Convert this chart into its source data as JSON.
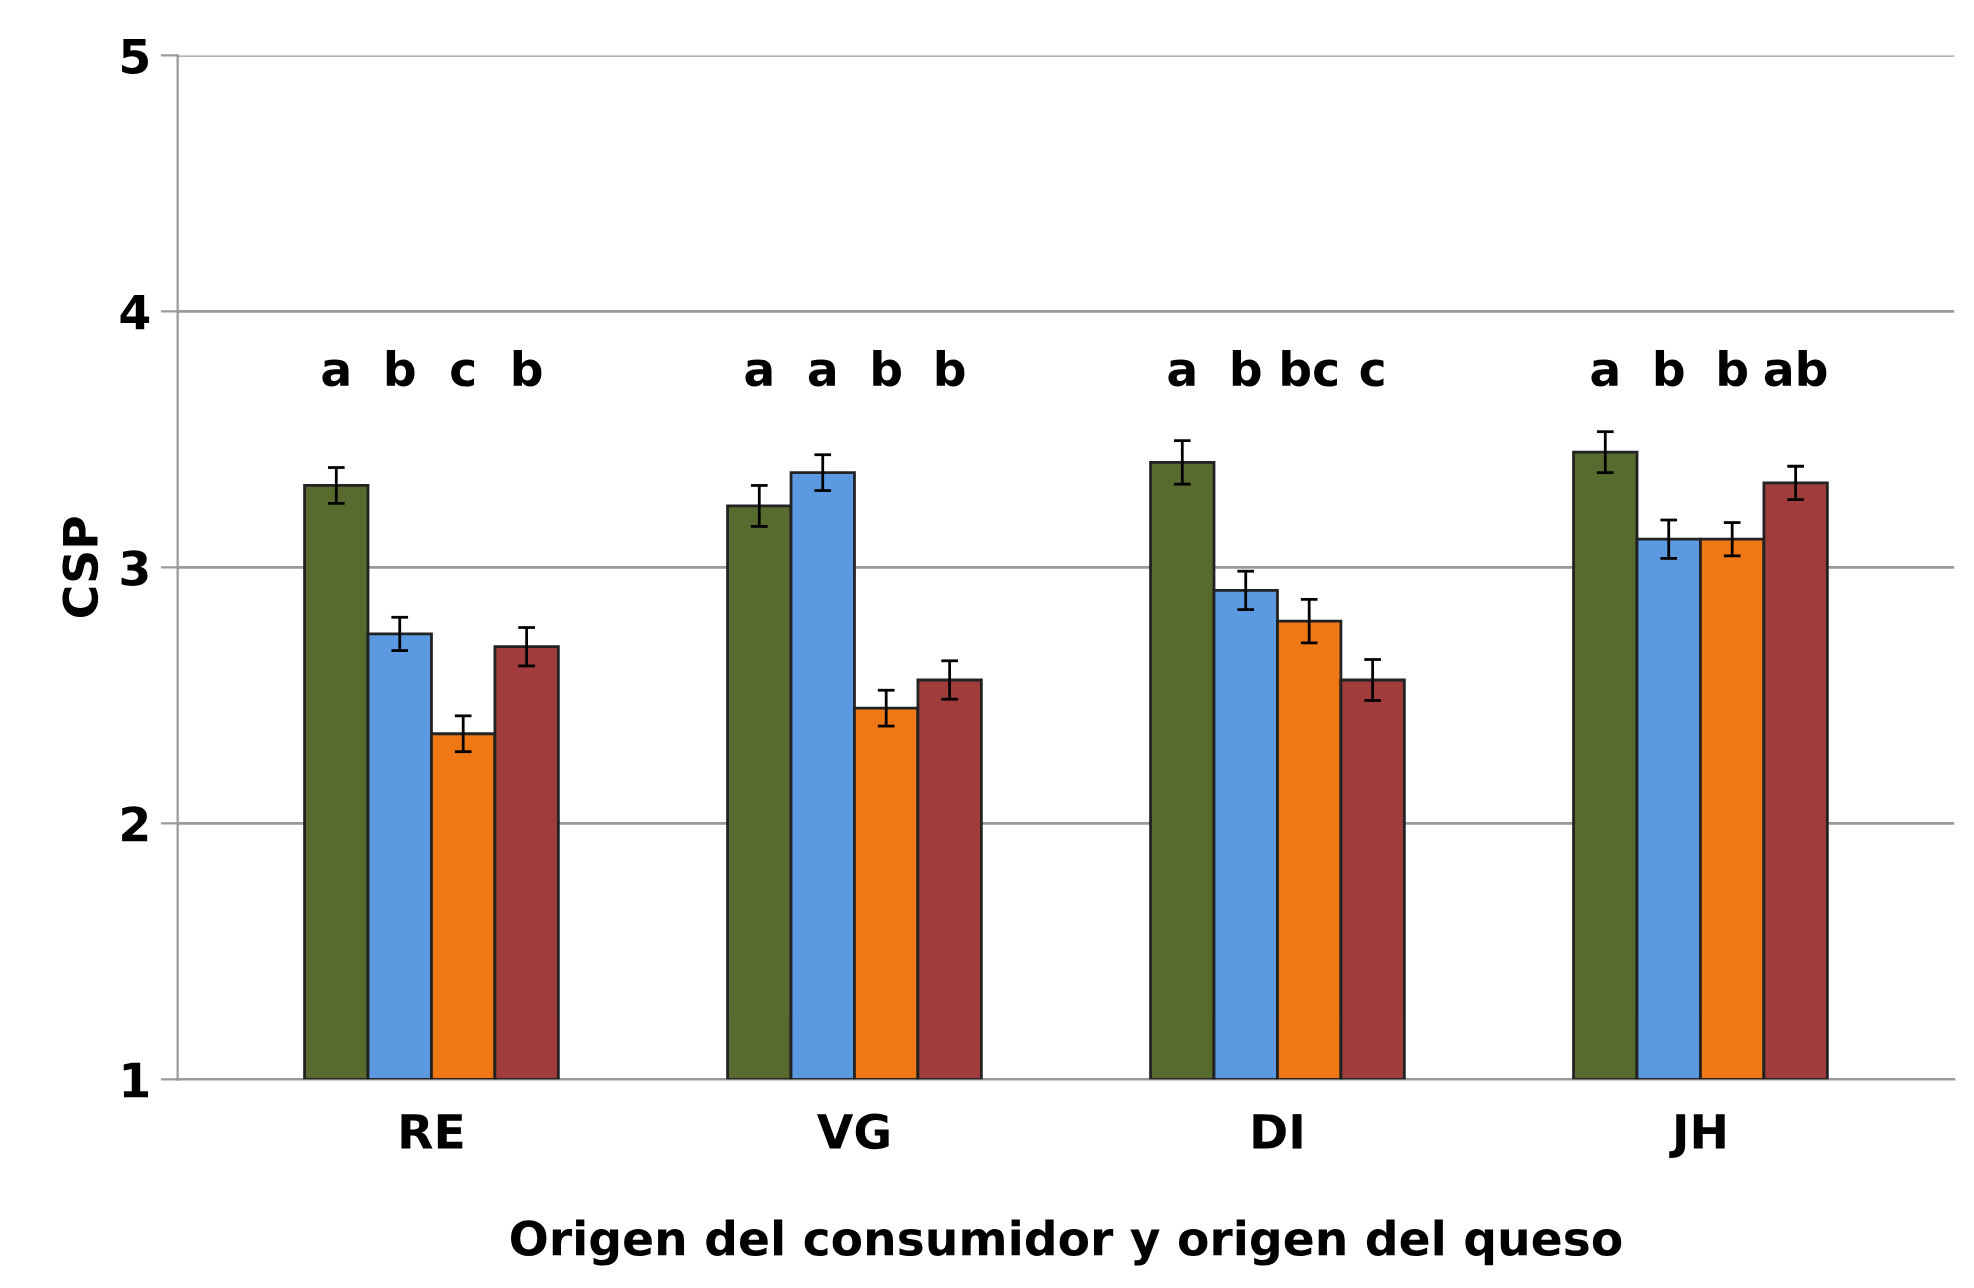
{
  "chart_data": {
    "type": "bar",
    "xlabel": "Origen del consumidor y origen del queso",
    "ylabel": "CSP",
    "categories": [
      "RE",
      "VG",
      "DI",
      "JH"
    ],
    "annotations": [
      "a",
      "b",
      "c",
      "b",
      "a",
      "a",
      "b",
      "b",
      "a",
      "b",
      "bc",
      "c",
      "a",
      "b",
      "b",
      "ab"
    ],
    "ylim": [
      1,
      5
    ],
    "yticks": [
      1,
      2,
      3,
      4,
      5
    ],
    "grid": "y",
    "legend": false,
    "series": [
      {
        "color": "#586b2f",
        "values": [
          3.32,
          3.24,
          3.41,
          3.45
        ],
        "errors": [
          0.07,
          0.08,
          0.085,
          0.08
        ]
      },
      {
        "color": "#5b9ae0",
        "values": [
          2.74,
          3.37,
          2.91,
          3.11
        ],
        "errors": [
          0.065,
          0.07,
          0.075,
          0.075
        ]
      },
      {
        "color": "#f07814",
        "values": [
          2.35,
          2.45,
          2.79,
          3.11
        ],
        "errors": [
          0.07,
          0.07,
          0.085,
          0.065
        ]
      },
      {
        "color": "#a03c3c",
        "values": [
          2.69,
          2.56,
          2.56,
          3.33
        ],
        "errors": [
          0.075,
          0.075,
          0.08,
          0.065
        ]
      }
    ]
  }
}
